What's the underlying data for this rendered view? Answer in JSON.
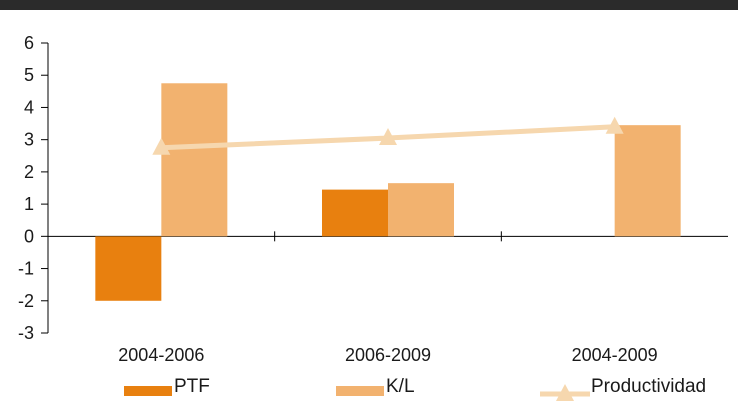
{
  "chart_data": {
    "type": "bar",
    "categories": [
      "2004-2006",
      "2006-2009",
      "2004-2009"
    ],
    "series": [
      {
        "name": "PTF",
        "type": "bar",
        "values": [
          -2.0,
          1.45,
          null
        ],
        "color": "#e8800f"
      },
      {
        "name": "K/L",
        "type": "bar",
        "values": [
          4.75,
          1.65,
          3.45
        ],
        "color": "#f2b26f"
      },
      {
        "name": "Productividad",
        "type": "line",
        "marker": "triangle",
        "values": [
          2.75,
          3.05,
          3.4
        ],
        "color": "#f6d7ae"
      }
    ],
    "yticks": [
      "6",
      "5",
      "4",
      "3",
      "2",
      "1",
      "0",
      "-1",
      "-2",
      "-3"
    ],
    "ylim": [
      -3,
      6
    ],
    "grid": false,
    "legend_position": "bottom"
  }
}
